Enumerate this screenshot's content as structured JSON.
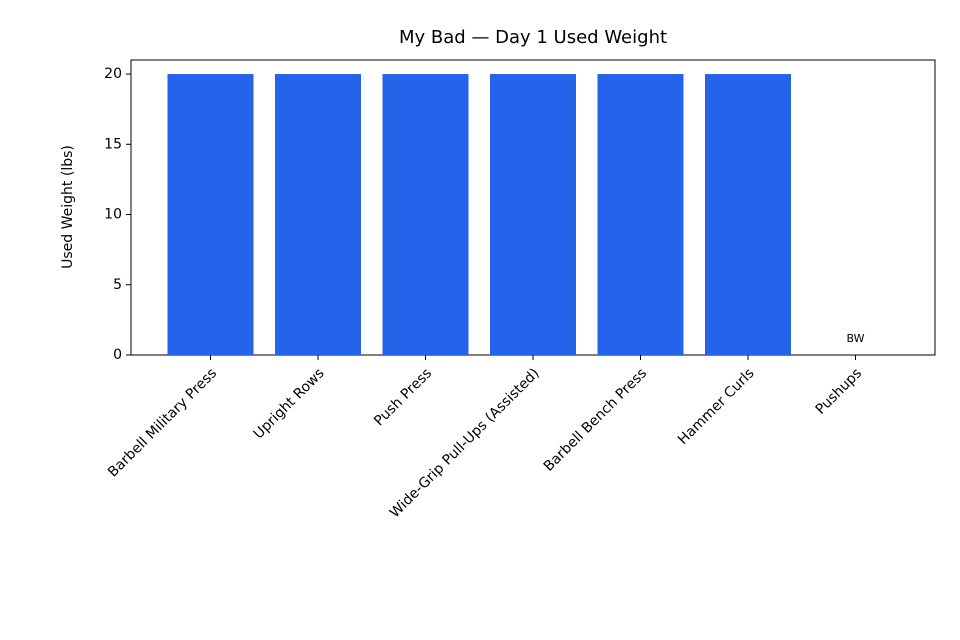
{
  "chart_data": {
    "type": "bar",
    "title": "My Bad — Day 1 Used Weight",
    "y_label": "Used Weight (lbs)",
    "categories": [
      "Barbell Military Press",
      "Upright Rows",
      "Push Press",
      "Wide-Grip Pull-Ups (Assisted)",
      "Barbell Bench Press",
      "Hammer Curls",
      "Pushups"
    ],
    "values": [
      20,
      20,
      20,
      20,
      20,
      20,
      0
    ],
    "value_labels": [
      null,
      null,
      null,
      null,
      null,
      null,
      "BW"
    ],
    "color": "#2563eb",
    "ylim": [
      0,
      21
    ],
    "yticks": [
      0,
      5,
      10,
      15,
      20
    ],
    "grid": false
  }
}
